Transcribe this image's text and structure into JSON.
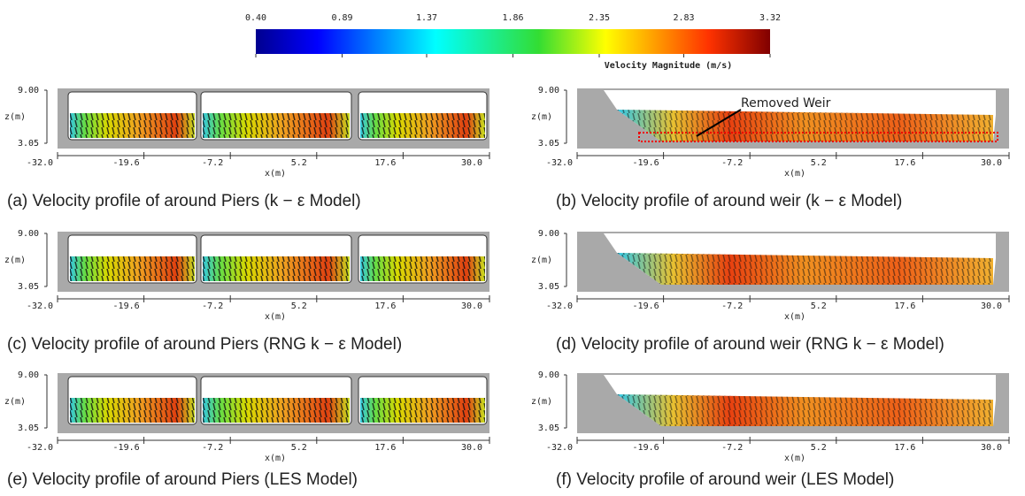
{
  "colorbar": {
    "ticks": [
      {
        "value": 0.4,
        "label": "0.40"
      },
      0.89,
      1.37,
      1.86,
      2.35,
      2.83,
      3.32
    ],
    "label": "Velocity Magnitude (m/s)"
  },
  "axes": {
    "x_label": "x(m)",
    "y_label": "z(m)",
    "x_ticks": [
      {
        "value": -32,
        "label": "-32.0"
      },
      -19.6,
      -7.2,
      5.2,
      17.6,
      {
        "value": 30,
        "label": "30.0"
      }
    ],
    "y_ticks": [
      {
        "value": 9,
        "label": "9.00"
      },
      3.05
    ]
  },
  "panels": [
    {
      "caption": "(a) Velocity profile of around Piers (k − ε Model)"
    },
    {
      "caption": "(b) Velocity profile of around weir (k − ε Model)",
      "annotation": "Removed Weir"
    },
    {
      "caption": "(c) Velocity profile of around Piers (RNG k − ε Model)"
    },
    {
      "caption": "(d) Velocity profile of around weir (RNG k − ε Model)"
    },
    {
      "caption": "(e) Velocity profile of around Piers (LES Model)"
    },
    {
      "caption": "(f) Velocity profile of around weir (LES Model)"
    }
  ]
}
